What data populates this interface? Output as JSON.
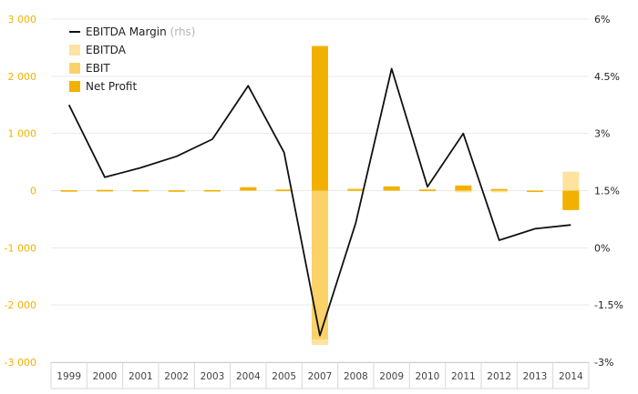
{
  "chart_data": {
    "type": "bar",
    "categories": [
      "1999",
      "2000",
      "2001",
      "2002",
      "2003",
      "2004",
      "2005",
      "2007",
      "2008",
      "2009",
      "2010",
      "2011",
      "2012",
      "2013",
      "2014"
    ],
    "series": [
      {
        "name": "EBITDA",
        "kind": "bar",
        "axis": "left",
        "values": [
          10,
          15,
          12,
          8,
          12,
          30,
          20,
          -2700,
          40,
          35,
          25,
          -30,
          -30,
          -25,
          330
        ],
        "color": "#fde3a0"
      },
      {
        "name": "EBIT",
        "kind": "bar",
        "axis": "left",
        "values": [
          8,
          12,
          10,
          6,
          10,
          55,
          18,
          -2600,
          30,
          70,
          20,
          60,
          30,
          -15,
          -300
        ],
        "color": "#fbd169"
      },
      {
        "name": "Net Profit",
        "kind": "bar",
        "axis": "left",
        "values": [
          5,
          10,
          8,
          4,
          8,
          60,
          15,
          2530,
          20,
          75,
          15,
          90,
          25,
          -10,
          -340
        ],
        "color": "#f2b100"
      },
      {
        "name": "EBITDA Margin",
        "legend_suffix": "(rhs)",
        "kind": "line",
        "axis": "right",
        "values": [
          3.75,
          1.85,
          2.1,
          2.4,
          2.85,
          4.25,
          2.5,
          -2.3,
          0.65,
          4.7,
          1.6,
          3.0,
          0.2,
          0.5,
          0.6
        ],
        "color": "#111111"
      }
    ],
    "y_left": {
      "ylim": [
        -3000,
        3000
      ],
      "ticks": [
        "3 000",
        "2 000",
        "1 000",
        "0",
        "-1 000",
        "-2 000",
        "-3 000"
      ],
      "tick_values": [
        3000,
        2000,
        1000,
        0,
        -1000,
        -2000,
        -3000
      ],
      "color": "#f2b100"
    },
    "y_right": {
      "ylim": [
        -3,
        6
      ],
      "ticks": [
        "6%",
        "4.5%",
        "3%",
        "1.5%",
        "0%",
        "-1.5%",
        "-3%"
      ],
      "tick_values": [
        6,
        4.5,
        3,
        1.5,
        0,
        -1.5,
        -3
      ],
      "color": "#222222"
    },
    "legend": {
      "placement": "top-left",
      "items": [
        {
          "label": "EBITDA Margin",
          "suffix": "(rhs)",
          "symbol": "line",
          "color": "#111111"
        },
        {
          "label": "EBITDA",
          "suffix": "",
          "symbol": "square",
          "color": "#fde3a0"
        },
        {
          "label": "EBIT",
          "suffix": "",
          "symbol": "square",
          "color": "#fbd169"
        },
        {
          "label": "Net Profit",
          "suffix": "",
          "symbol": "square",
          "color": "#f2b100"
        }
      ]
    },
    "grid": true,
    "title": "",
    "xlabel": "",
    "ylabel": ""
  }
}
